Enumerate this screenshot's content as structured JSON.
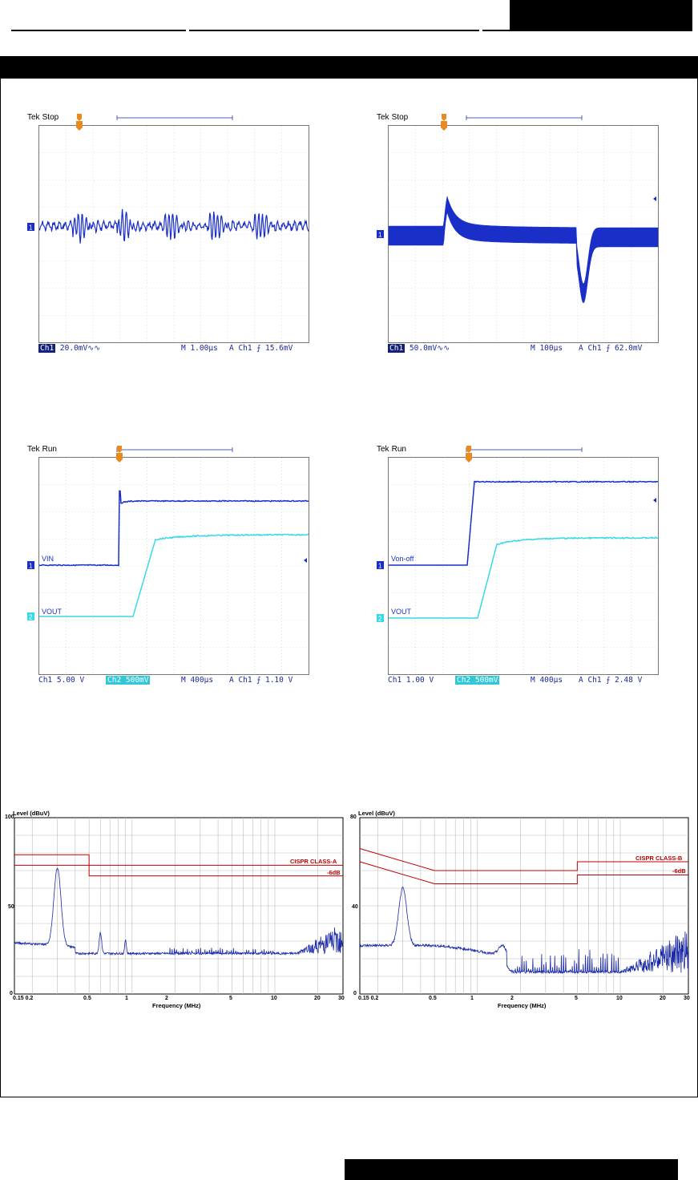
{
  "scopes": [
    {
      "id": "ripple",
      "brand": "Tek",
      "state": "Stop",
      "ch1_scale": "20.0mV",
      "ch1_coupling": "∿∿",
      "timebase": "M 1.00µs",
      "trigger": "A  Ch1  ⨍  15.6mV"
    },
    {
      "id": "transient",
      "brand": "Tek",
      "state": "Stop",
      "ch1_scale": "50.0mV",
      "ch1_coupling": "∿∿",
      "timebase": "M 100µs",
      "trigger": "A  Ch1  ⨍  62.0mV"
    },
    {
      "id": "startup",
      "brand": "Tek",
      "state": "Run",
      "ch1_scale": "Ch1  5.00 V",
      "ch2_scale": "Ch2  500mV",
      "timebase": "M 400µs",
      "trigger": "A  Ch1  ⨍  1.10 V",
      "trace1_label": "VIN",
      "trace2_label": "VOUT"
    },
    {
      "id": "remote",
      "brand": "Tek",
      "state": "Run",
      "ch1_scale": "Ch1  1.00 V",
      "ch2_scale": "Ch2  500mV",
      "timebase": "M 400µs",
      "trigger": "A  Ch1  ⨍  2.48 V",
      "trace1_label": "Von-off",
      "trace2_label": "VOUT"
    }
  ],
  "emi": [
    {
      "id": "class-a",
      "ylabel": "Level (dBuV)",
      "xlabel": "Frequency (MHz)",
      "yticks": [
        "100",
        "50",
        "0"
      ],
      "xticks": [
        "0.15 0.2",
        "0.5",
        "1",
        "2",
        "5",
        "10",
        "20",
        "30"
      ],
      "limit_label": "CISPR CLASS-A",
      "margin_label": "-6dB"
    },
    {
      "id": "class-b",
      "ylabel": "Level (dBuV)",
      "xlabel": "Frequency (MHz)",
      "yticks": [
        "80",
        "40",
        "0"
      ],
      "xticks": [
        "0.15 0.2",
        "0.5",
        "1",
        "2",
        "5",
        "10",
        "20",
        "30"
      ],
      "limit_label": "CISPR CLASS-B",
      "margin_label": "-6dB"
    }
  ],
  "colors": {
    "trace1": "#1a2fc8",
    "trace2": "#38d8e8",
    "limit": "#c00000",
    "emi_trace": "#1a2aa8"
  }
}
